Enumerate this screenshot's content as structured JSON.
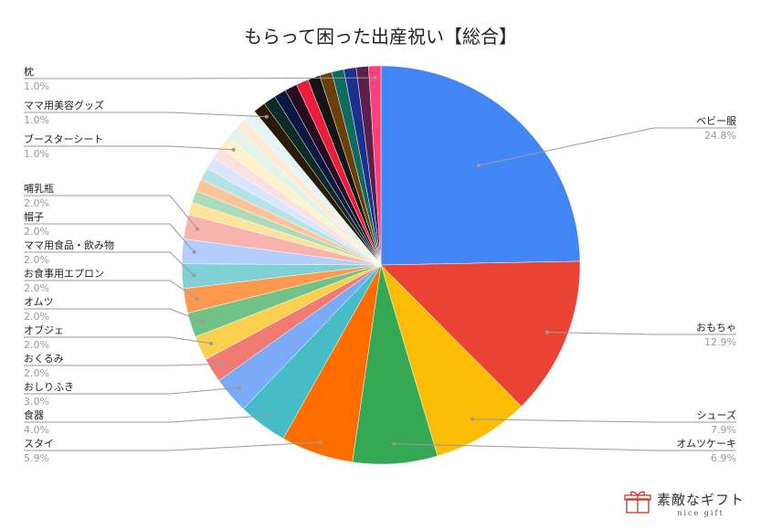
{
  "chart_data": {
    "type": "pie",
    "title": "もらって困った出産祝い【総合】",
    "slices": [
      {
        "label": "ベビー服",
        "value": 24.8,
        "pct_text": "24.8%",
        "color": "#4285f4",
        "side": "right"
      },
      {
        "label": "おもちゃ",
        "value": 12.9,
        "pct_text": "12.9%",
        "color": "#ea4335",
        "side": "right"
      },
      {
        "label": "シューズ",
        "value": 7.9,
        "pct_text": "7.9%",
        "color": "#fbbc04",
        "side": "right"
      },
      {
        "label": "オムツケーキ",
        "value": 6.9,
        "pct_text": "6.9%",
        "color": "#34a853",
        "side": "right"
      },
      {
        "label": "スタイ",
        "value": 5.9,
        "pct_text": "5.9%",
        "color": "#ff6d01",
        "side": "left"
      },
      {
        "label": "食器",
        "value": 4.0,
        "pct_text": "4.0%",
        "color": "#46bdc6",
        "side": "left"
      },
      {
        "label": "おしりふき",
        "value": 3.0,
        "pct_text": "3.0%",
        "color": "#7baaf7",
        "side": "left"
      },
      {
        "label": "おくるみ",
        "value": 2.0,
        "pct_text": "2.0%",
        "color": "#f07b72",
        "side": "left"
      },
      {
        "label": "オブジェ",
        "value": 2.0,
        "pct_text": "2.0%",
        "color": "#fcd04f",
        "side": "left"
      },
      {
        "label": "オムツ",
        "value": 2.0,
        "pct_text": "2.0%",
        "color": "#71c287",
        "side": "left"
      },
      {
        "label": "お食事用エプロン",
        "value": 2.0,
        "pct_text": "2.0%",
        "color": "#ff994d",
        "side": "left"
      },
      {
        "label": "ママ用食品・飲み物",
        "value": 2.0,
        "pct_text": "2.0%",
        "color": "#7ed1d7",
        "side": "left"
      },
      {
        "label": "帽子",
        "value": 2.0,
        "pct_text": "2.0%",
        "color": "#b3cefb",
        "side": "left"
      },
      {
        "label": "哺乳瓶",
        "value": 2.0,
        "pct_text": "2.0%",
        "color": "#f7b4ae",
        "side": "left"
      },
      {
        "label": "",
        "value": 1.0,
        "pct_text": "",
        "color": "#fde49b",
        "side": "none"
      },
      {
        "label": "",
        "value": 1.0,
        "pct_text": "",
        "color": "#aedcba",
        "side": "none"
      },
      {
        "label": "",
        "value": 1.0,
        "pct_text": "",
        "color": "#ffc599",
        "side": "none"
      },
      {
        "label": "",
        "value": 1.0,
        "pct_text": "",
        "color": "#b4e4e8",
        "side": "none"
      },
      {
        "label": "",
        "value": 1.0,
        "pct_text": "",
        "color": "#d9e6fd",
        "side": "none"
      },
      {
        "label": "",
        "value": 1.0,
        "pct_text": "",
        "color": "#fbe1df",
        "side": "none"
      },
      {
        "label": "ブースターシート",
        "value": 1.0,
        "pct_text": "1.0%",
        "color": "#fef2cd",
        "side": "left"
      },
      {
        "label": "",
        "value": 1.0,
        "pct_text": "",
        "color": "#e3f3e7",
        "side": "none"
      },
      {
        "label": "",
        "value": 1.0,
        "pct_text": "",
        "color": "#ffead9",
        "side": "none"
      },
      {
        "label": "",
        "value": 1.0,
        "pct_text": "",
        "color": "#e4f5f6",
        "side": "none"
      },
      {
        "label": "ママ用美容グッズ",
        "value": 1.0,
        "pct_text": "1.0%",
        "color": "#2b1a08",
        "side": "left"
      },
      {
        "label": "",
        "value": 1.0,
        "pct_text": "",
        "color": "#0d2b26",
        "side": "none"
      },
      {
        "label": "",
        "value": 1.0,
        "pct_text": "",
        "color": "#0b1740",
        "side": "none"
      },
      {
        "label": "",
        "value": 1.0,
        "pct_text": "",
        "color": "#2a0a1e",
        "side": "none"
      },
      {
        "label": "",
        "value": 1.0,
        "pct_text": "",
        "color": "#ea1c3a",
        "side": "none"
      },
      {
        "label": "",
        "value": 1.0,
        "pct_text": "",
        "color": "#151515",
        "side": "none"
      },
      {
        "label": "",
        "value": 1.0,
        "pct_text": "",
        "color": "#6b3f0a",
        "side": "none"
      },
      {
        "label": "",
        "value": 1.0,
        "pct_text": "",
        "color": "#0f6b5e",
        "side": "none"
      },
      {
        "label": "",
        "value": 1.0,
        "pct_text": "",
        "color": "#1a2f8f",
        "side": "none"
      },
      {
        "label": "",
        "value": 1.0,
        "pct_text": "",
        "color": "#5a1f4a",
        "side": "none"
      },
      {
        "label": "枕",
        "value": 1.0,
        "pct_text": "1.0%",
        "color": "#ff3f7a",
        "side": "left"
      }
    ]
  },
  "brand": {
    "name": "素敵なギフト",
    "sub": "nice gift",
    "icon": "gift-box-icon",
    "color": "#c0392b"
  }
}
